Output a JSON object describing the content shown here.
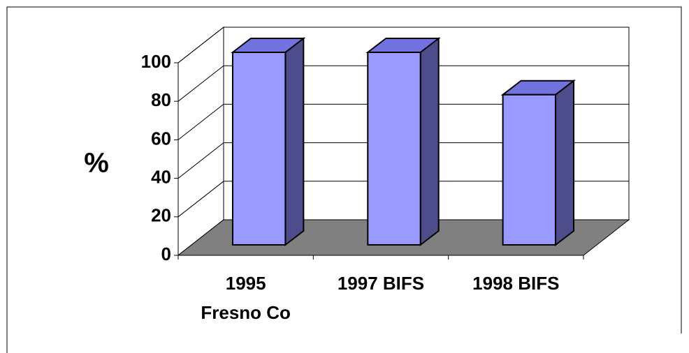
{
  "chart_data": {
    "type": "bar3d",
    "y_label": "%",
    "categories": [
      "1995\nFresno Co",
      "1997 BIFS",
      "1998 BIFS"
    ],
    "values": [
      100,
      100,
      78
    ],
    "color": "#9999ff",
    "ylim": [
      0,
      100
    ],
    "yticks": [
      0,
      20,
      40,
      60,
      80,
      100
    ],
    "grid": true
  }
}
